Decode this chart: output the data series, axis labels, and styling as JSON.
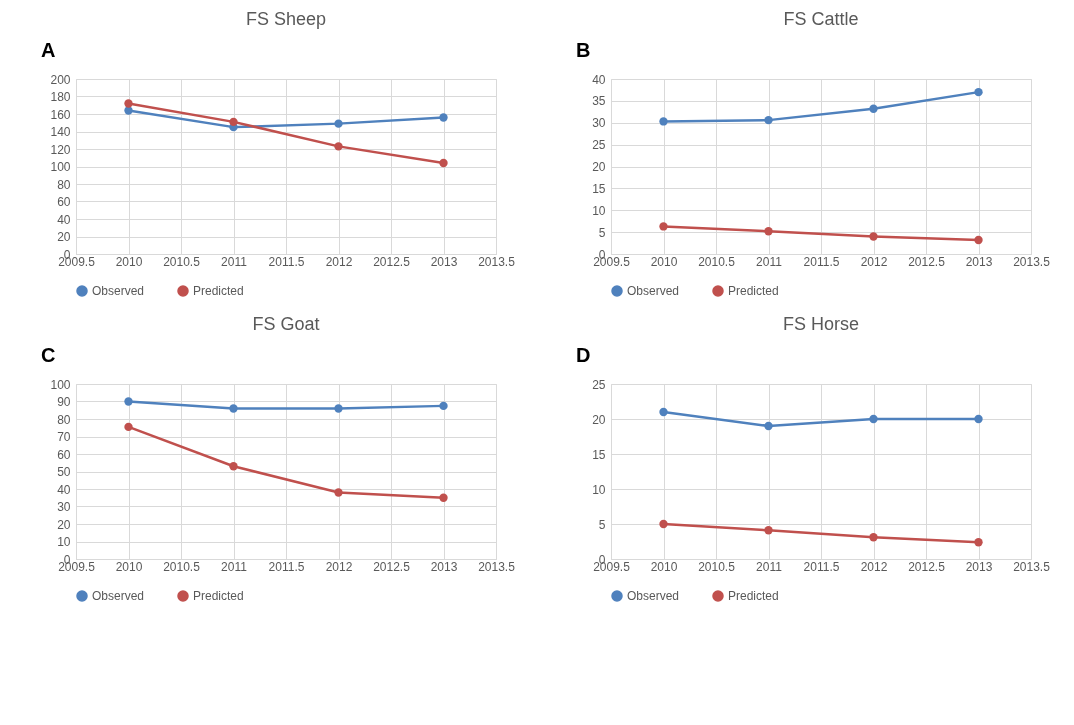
{
  "chart_data": [
    {
      "type": "line",
      "title": "FS Sheep",
      "annotations": [
        "A"
      ],
      "x": [
        2010,
        2011,
        2012,
        2013
      ],
      "xlim": [
        2009.5,
        2013.5
      ],
      "xticks": [
        2009.5,
        2010,
        2010.5,
        2011,
        2011.5,
        2012,
        2012.5,
        2013,
        2013.5
      ],
      "ylim": [
        0,
        200
      ],
      "yticks": [
        0,
        20,
        40,
        60,
        80,
        100,
        120,
        140,
        160,
        180,
        200
      ],
      "grid": true,
      "legend": "bottom",
      "marker": "circle",
      "line_style": "solid",
      "series": [
        {
          "name": "Observed",
          "color": "#4f81bd",
          "values": [
            164,
            145,
            149,
            156
          ]
        },
        {
          "name": "Predicted",
          "color": "#c0504d",
          "values": [
            172,
            151,
            123,
            104
          ]
        }
      ]
    },
    {
      "type": "line",
      "title": "FS Cattle",
      "annotations": [
        "B"
      ],
      "x": [
        2010,
        2011,
        2012,
        2013
      ],
      "xlim": [
        2009.5,
        2013.5
      ],
      "xticks": [
        2009.5,
        2010,
        2010.5,
        2011,
        2011.5,
        2012,
        2012.5,
        2013,
        2013.5
      ],
      "ylim": [
        0,
        40
      ],
      "yticks": [
        0,
        5,
        10,
        15,
        20,
        25,
        30,
        35,
        40
      ],
      "grid": true,
      "legend": "bottom",
      "marker": "circle",
      "line_style": "solid",
      "series": [
        {
          "name": "Observed",
          "color": "#4f81bd",
          "values": [
            30.3,
            30.6,
            33.2,
            37
          ]
        },
        {
          "name": "Predicted",
          "color": "#c0504d",
          "values": [
            6.3,
            5.2,
            4.0,
            3.2
          ]
        }
      ]
    },
    {
      "type": "line",
      "title": "FS Goat",
      "annotations": [
        "C"
      ],
      "x": [
        2010,
        2011,
        2012,
        2013
      ],
      "xlim": [
        2009.5,
        2013.5
      ],
      "xticks": [
        2009.5,
        2010,
        2010.5,
        2011,
        2011.5,
        2012,
        2012.5,
        2013,
        2013.5
      ],
      "ylim": [
        0,
        100
      ],
      "yticks": [
        0,
        10,
        20,
        30,
        40,
        50,
        60,
        70,
        80,
        90,
        100
      ],
      "grid": true,
      "legend": "bottom",
      "marker": "circle",
      "line_style": "solid",
      "series": [
        {
          "name": "Observed",
          "color": "#4f81bd",
          "values": [
            90,
            86,
            86,
            87.5
          ]
        },
        {
          "name": "Predicted",
          "color": "#c0504d",
          "values": [
            75.5,
            53,
            38,
            35
          ]
        }
      ]
    },
    {
      "type": "line",
      "title": "FS Horse",
      "annotations": [
        "D"
      ],
      "x": [
        2010,
        2011,
        2012,
        2013
      ],
      "xlim": [
        2009.5,
        2013.5
      ],
      "xticks": [
        2009.5,
        2010,
        2010.5,
        2011,
        2011.5,
        2012,
        2012.5,
        2013,
        2013.5
      ],
      "ylim": [
        0,
        25
      ],
      "yticks": [
        0,
        5,
        10,
        15,
        20,
        25
      ],
      "grid": true,
      "legend": "bottom",
      "marker": "circle",
      "line_style": "solid",
      "series": [
        {
          "name": "Observed",
          "color": "#4f81bd",
          "values": [
            21,
            19,
            20,
            20
          ]
        },
        {
          "name": "Predicted",
          "color": "#c0504d",
          "values": [
            5,
            4.1,
            3.1,
            2.4
          ]
        }
      ]
    }
  ]
}
